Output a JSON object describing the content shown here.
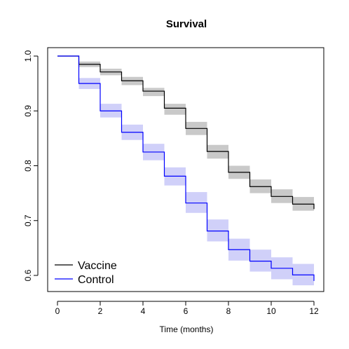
{
  "chart_data": {
    "type": "line",
    "title": "Survival",
    "xlabel": "Time (months)",
    "ylabel": "",
    "xlim": [
      0,
      12
    ],
    "ylim": [
      0.6,
      1.0
    ],
    "x_ticks": [
      "0",
      "2",
      "4",
      "6",
      "8",
      "10",
      "12"
    ],
    "y_ticks": [
      "0.6",
      "0.7",
      "0.8",
      "0.9",
      "1.0"
    ],
    "x": [
      0,
      1,
      2,
      3,
      4,
      5,
      6,
      7,
      8,
      9,
      10,
      11,
      12
    ],
    "legend_position": "bottom-left",
    "grid": false,
    "series": [
      {
        "name": "Vaccine",
        "color": "#000000",
        "band_color": "#bfbfbf",
        "values": [
          1.0,
          0.985,
          0.971,
          0.955,
          0.936,
          0.905,
          0.868,
          0.826,
          0.788,
          0.762,
          0.744,
          0.73,
          0.721
        ],
        "lower": [
          1.0,
          0.98,
          0.965,
          0.947,
          0.927,
          0.893,
          0.856,
          0.813,
          0.776,
          0.75,
          0.732,
          0.718,
          0.718
        ],
        "upper": [
          1.0,
          0.99,
          0.977,
          0.962,
          0.942,
          0.913,
          0.88,
          0.838,
          0.8,
          0.775,
          0.757,
          0.743,
          0.743
        ]
      },
      {
        "name": "Control",
        "color": "#0000ff",
        "band_color": "#c8c8f8",
        "values": [
          1.0,
          0.95,
          0.9,
          0.861,
          0.825,
          0.781,
          0.732,
          0.681,
          0.647,
          0.626,
          0.613,
          0.601,
          0.59
        ],
        "lower": [
          1.0,
          0.94,
          0.888,
          0.847,
          0.81,
          0.764,
          0.714,
          0.662,
          0.627,
          0.607,
          0.593,
          0.582,
          0.582
        ],
        "upper": [
          1.0,
          0.96,
          0.913,
          0.875,
          0.84,
          0.797,
          0.752,
          0.702,
          0.667,
          0.647,
          0.633,
          0.621,
          0.621
        ]
      }
    ]
  }
}
